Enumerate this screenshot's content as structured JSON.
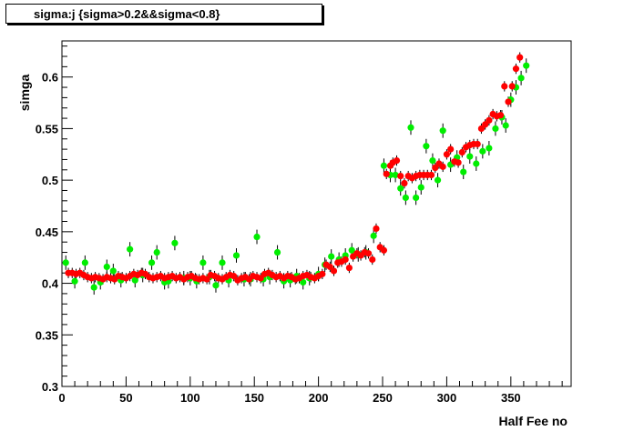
{
  "chart_data": {
    "type": "scatter",
    "title": "sigma:j {sigma>0.2&&sigma<0.8}",
    "xlabel": "Half Fee no",
    "ylabel": "simga",
    "xlim": [
      0,
      397
    ],
    "ylim": [
      0.3,
      0.635
    ],
    "x_ticks": [
      0,
      50,
      100,
      150,
      200,
      250,
      300,
      350
    ],
    "y_ticks": [
      0.3,
      0.35,
      0.4,
      0.45,
      0.5,
      0.55,
      0.6
    ],
    "x_tick_labels": [
      "0",
      "50",
      "100",
      "150",
      "200",
      "250",
      "300",
      "350"
    ],
    "y_tick_labels": [
      "0.3",
      "0.35",
      "0.4",
      "0.45",
      "0.5",
      "0.55",
      "0.6"
    ],
    "grid": false,
    "series": [
      {
        "color": "#ff0000",
        "error": 0.005,
        "points": [
          [
            5,
            0.41
          ],
          [
            8,
            0.41
          ],
          [
            11,
            0.409
          ],
          [
            14,
            0.41
          ],
          [
            17,
            0.408
          ],
          [
            20,
            0.406
          ],
          [
            23,
            0.405
          ],
          [
            26,
            0.406
          ],
          [
            29,
            0.405
          ],
          [
            32,
            0.404
          ],
          [
            35,
            0.406
          ],
          [
            38,
            0.405
          ],
          [
            41,
            0.404
          ],
          [
            44,
            0.407
          ],
          [
            47,
            0.406
          ],
          [
            50,
            0.405
          ],
          [
            53,
            0.407
          ],
          [
            56,
            0.409
          ],
          [
            59,
            0.408
          ],
          [
            62,
            0.41
          ],
          [
            65,
            0.409
          ],
          [
            68,
            0.406
          ],
          [
            71,
            0.405
          ],
          [
            74,
            0.406
          ],
          [
            77,
            0.407
          ],
          [
            80,
            0.405
          ],
          [
            83,
            0.406
          ],
          [
            86,
            0.407
          ],
          [
            89,
            0.405
          ],
          [
            92,
            0.406
          ],
          [
            95,
            0.404
          ],
          [
            98,
            0.406
          ],
          [
            101,
            0.407
          ],
          [
            104,
            0.405
          ],
          [
            107,
            0.404
          ],
          [
            110,
            0.405
          ],
          [
            113,
            0.404
          ],
          [
            116,
            0.408
          ],
          [
            119,
            0.407
          ],
          [
            122,
            0.405
          ],
          [
            125,
            0.404
          ],
          [
            128,
            0.406
          ],
          [
            131,
            0.408
          ],
          [
            134,
            0.407
          ],
          [
            137,
            0.403
          ],
          [
            140,
            0.405
          ],
          [
            143,
            0.406
          ],
          [
            146,
            0.404
          ],
          [
            149,
            0.407
          ],
          [
            152,
            0.406
          ],
          [
            155,
            0.405
          ],
          [
            158,
            0.409
          ],
          [
            161,
            0.41
          ],
          [
            164,
            0.408
          ],
          [
            167,
            0.406
          ],
          [
            170,
            0.407
          ],
          [
            173,
            0.405
          ],
          [
            176,
            0.407
          ],
          [
            179,
            0.406
          ],
          [
            182,
            0.404
          ],
          [
            185,
            0.405
          ],
          [
            188,
            0.407
          ],
          [
            191,
            0.408
          ],
          [
            194,
            0.406
          ],
          [
            197,
            0.405
          ],
          [
            200,
            0.407
          ],
          [
            203,
            0.409
          ],
          [
            206,
            0.418
          ],
          [
            209,
            0.416
          ],
          [
            212,
            0.412
          ],
          [
            215,
            0.42
          ],
          [
            218,
            0.421
          ],
          [
            221,
            0.423
          ],
          [
            224,
            0.415
          ],
          [
            227,
            0.426
          ],
          [
            230,
            0.429
          ],
          [
            233,
            0.427
          ],
          [
            236,
            0.43
          ],
          [
            239,
            0.429
          ],
          [
            242,
            0.423
          ],
          [
            245,
            0.453
          ],
          [
            248,
            0.435
          ],
          [
            251,
            0.432
          ],
          [
            253,
            0.506
          ],
          [
            256,
            0.514
          ],
          [
            258,
            0.517
          ],
          [
            261,
            0.519
          ],
          [
            264,
            0.504
          ],
          [
            267,
            0.497
          ],
          [
            270,
            0.504
          ],
          [
            273,
            0.502
          ],
          [
            276,
            0.504
          ],
          [
            279,
            0.505
          ],
          [
            282,
            0.505
          ],
          [
            285,
            0.505
          ],
          [
            288,
            0.505
          ],
          [
            291,
            0.512
          ],
          [
            294,
            0.516
          ],
          [
            297,
            0.513
          ],
          [
            300,
            0.525
          ],
          [
            303,
            0.53
          ],
          [
            306,
            0.518
          ],
          [
            309,
            0.517
          ],
          [
            312,
            0.527
          ],
          [
            315,
            0.532
          ],
          [
            318,
            0.534
          ],
          [
            321,
            0.535
          ],
          [
            324,
            0.535
          ],
          [
            327,
            0.55
          ],
          [
            330,
            0.554
          ],
          [
            333,
            0.558
          ],
          [
            336,
            0.564
          ],
          [
            339,
            0.562
          ],
          [
            342,
            0.563
          ],
          [
            345,
            0.591
          ],
          [
            348,
            0.576
          ],
          [
            351,
            0.591
          ],
          [
            354,
            0.608
          ],
          [
            357,
            0.619
          ]
        ]
      },
      {
        "color": "#00ee00",
        "error": 0.007,
        "points": [
          [
            3,
            0.42
          ],
          [
            10,
            0.402
          ],
          [
            18,
            0.42
          ],
          [
            25,
            0.396
          ],
          [
            30,
            0.401
          ],
          [
            35,
            0.416
          ],
          [
            40,
            0.412
          ],
          [
            46,
            0.403
          ],
          [
            53,
            0.433
          ],
          [
            57,
            0.403
          ],
          [
            63,
            0.408
          ],
          [
            70,
            0.42
          ],
          [
            74,
            0.43
          ],
          [
            80,
            0.401
          ],
          [
            83,
            0.402
          ],
          [
            88,
            0.439
          ],
          [
            95,
            0.405
          ],
          [
            100,
            0.405
          ],
          [
            105,
            0.402
          ],
          [
            110,
            0.42
          ],
          [
            115,
            0.406
          ],
          [
            120,
            0.398
          ],
          [
            125,
            0.42
          ],
          [
            130,
            0.403
          ],
          [
            136,
            0.427
          ],
          [
            142,
            0.404
          ],
          [
            147,
            0.404
          ],
          [
            152,
            0.445
          ],
          [
            157,
            0.404
          ],
          [
            162,
            0.406
          ],
          [
            168,
            0.43
          ],
          [
            173,
            0.402
          ],
          [
            178,
            0.403
          ],
          [
            183,
            0.407
          ],
          [
            188,
            0.401
          ],
          [
            193,
            0.405
          ],
          [
            200,
            0.409
          ],
          [
            205,
            0.418
          ],
          [
            210,
            0.426
          ],
          [
            216,
            0.423
          ],
          [
            221,
            0.427
          ],
          [
            226,
            0.432
          ],
          [
            231,
            0.428
          ],
          [
            237,
            0.43
          ],
          [
            243,
            0.446
          ],
          [
            251,
            0.514
          ],
          [
            256,
            0.505
          ],
          [
            260,
            0.505
          ],
          [
            264,
            0.492
          ],
          [
            268,
            0.483
          ],
          [
            272,
            0.551
          ],
          [
            276,
            0.483
          ],
          [
            280,
            0.493
          ],
          [
            284,
            0.533
          ],
          [
            289,
            0.519
          ],
          [
            293,
            0.5
          ],
          [
            297,
            0.548
          ],
          [
            303,
            0.515
          ],
          [
            308,
            0.522
          ],
          [
            313,
            0.508
          ],
          [
            318,
            0.523
          ],
          [
            323,
            0.516
          ],
          [
            328,
            0.528
          ],
          [
            333,
            0.531
          ],
          [
            338,
            0.55
          ],
          [
            343,
            0.561
          ],
          [
            346,
            0.553
          ],
          [
            350,
            0.578
          ],
          [
            354,
            0.59
          ],
          [
            358,
            0.599
          ],
          [
            362,
            0.611
          ]
        ]
      }
    ]
  }
}
